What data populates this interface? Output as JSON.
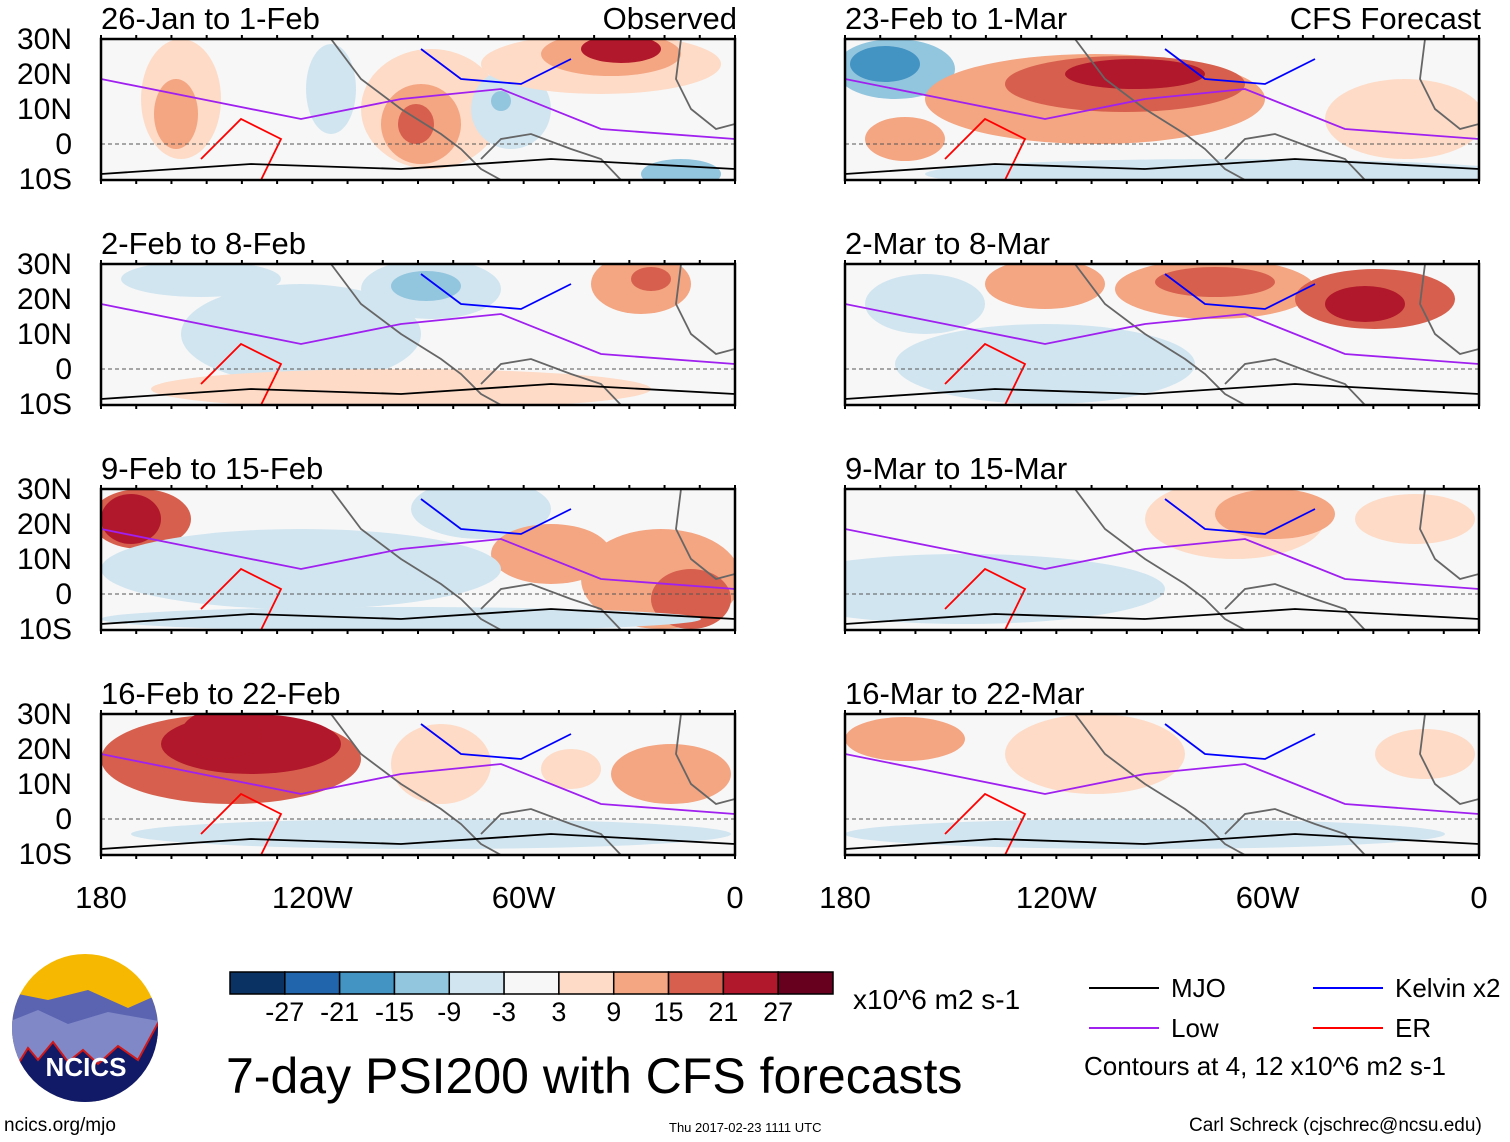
{
  "header": {
    "observed_label": "Observed",
    "forecast_label": "CFS Forecast"
  },
  "panels": [
    {
      "title": "26-Jan to 1-Feb",
      "column": "observed"
    },
    {
      "title": "2-Feb to 8-Feb",
      "column": "observed"
    },
    {
      "title": "9-Feb to 15-Feb",
      "column": "observed"
    },
    {
      "title": "16-Feb to 22-Feb",
      "column": "observed"
    },
    {
      "title": "23-Feb to 1-Mar",
      "column": "forecast"
    },
    {
      "title": "2-Mar to 8-Mar",
      "column": "forecast"
    },
    {
      "title": "9-Mar to 15-Mar",
      "column": "forecast"
    },
    {
      "title": "16-Mar to 22-Mar",
      "column": "forecast"
    }
  ],
  "lat_labels": [
    "30N",
    "20N",
    "10N",
    "0",
    "10S"
  ],
  "lon_labels": [
    "180",
    "120W",
    "60W",
    "0"
  ],
  "colorbar": {
    "colors": [
      "#0a3262",
      "#2166ac",
      "#4393c3",
      "#92c5de",
      "#d1e5f0",
      "#f7f7f7",
      "#fddbc7",
      "#f4a582",
      "#d6604d",
      "#b2182b",
      "#67001f"
    ],
    "labels": [
      "-27",
      "-21",
      "-15",
      "-9",
      "-3",
      "3",
      "9",
      "15",
      "21",
      "27"
    ],
    "units": "x10^6 m2 s-1"
  },
  "legend": {
    "items": [
      {
        "label": "MJO",
        "color": "#000000"
      },
      {
        "label": "Kelvin x2",
        "color": "#0000ff"
      },
      {
        "label": "Low",
        "color": "#a020f0"
      },
      {
        "label": "ER",
        "color": "#ff0000"
      }
    ],
    "contours_note": "Contours at 4, 12 x10^6 m2 s-1"
  },
  "title": "7-day PSI200 with CFS forecasts",
  "logo_text": "NCICS",
  "footer": {
    "url": "ncics.org/mjo",
    "timestamp": "Thu 2017-02-23 1111 UTC",
    "credit": "Carl Schreck (cjschrec@ncsu.edu)"
  }
}
